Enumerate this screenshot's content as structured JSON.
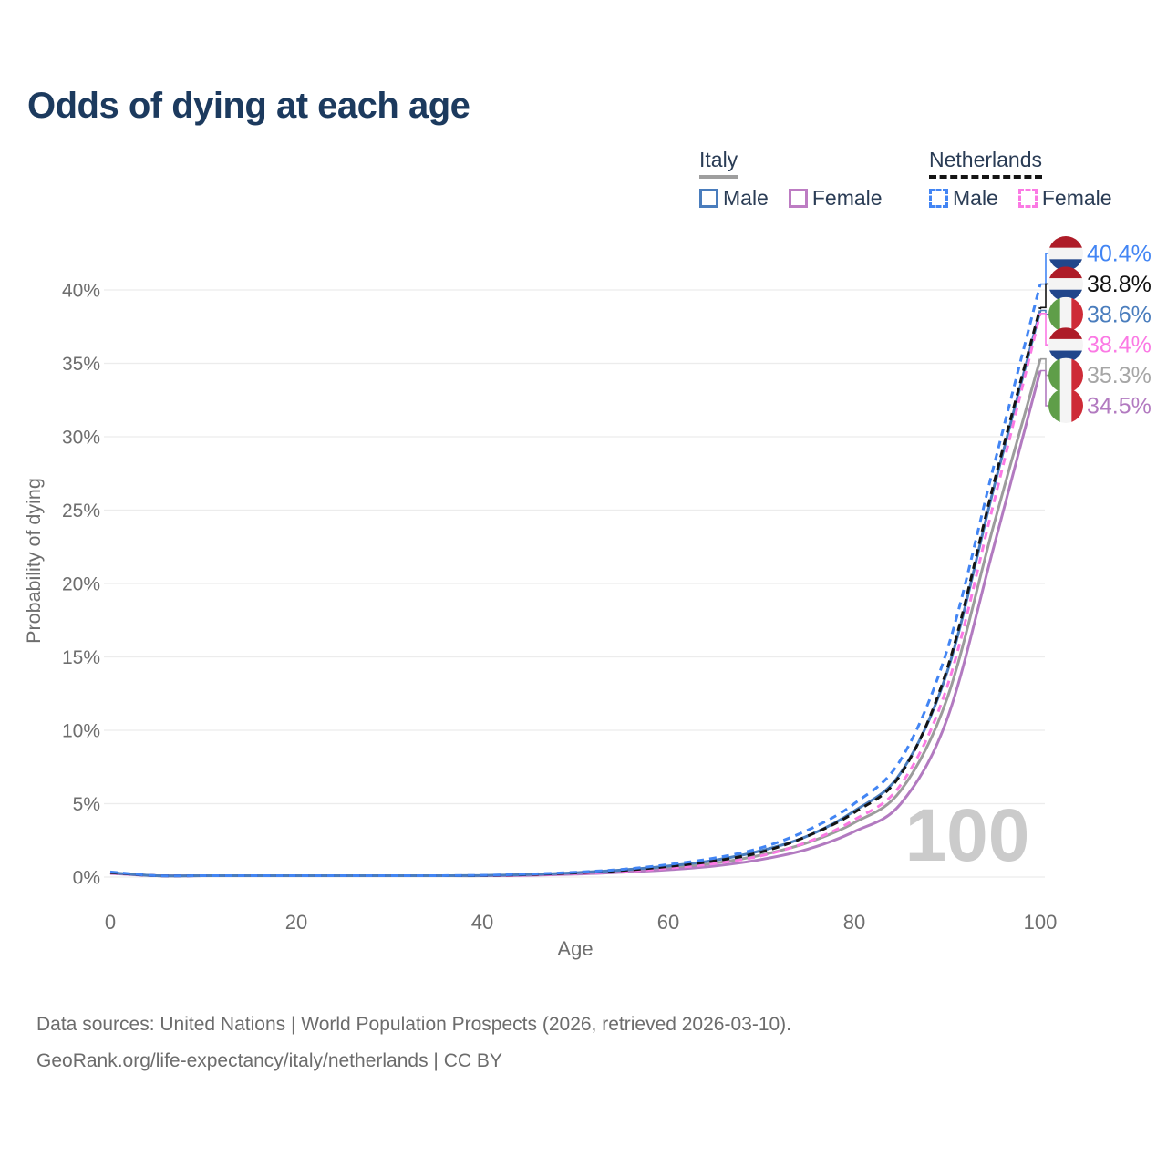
{
  "title": "Odds of dying at each age",
  "watermark": "100",
  "legend": {
    "groups": [
      {
        "label": "Italy",
        "underline": "solid",
        "underline_color": "#9e9e9e",
        "items": [
          {
            "label": "Male",
            "box_color": "#4a7dbd",
            "box_style": "solid"
          },
          {
            "label": "Female",
            "box_color": "#bd7cc3",
            "box_style": "solid"
          }
        ]
      },
      {
        "label": "Netherlands",
        "underline": "dashed",
        "underline_color": "#141414",
        "items": [
          {
            "label": "Male",
            "box_color": "#4285f4",
            "box_style": "dashed"
          },
          {
            "label": "Female",
            "box_color": "#fb79e4",
            "box_style": "dashed"
          }
        ]
      }
    ]
  },
  "chart_data": {
    "type": "line",
    "xlabel": "Age",
    "ylabel": "Probability of dying",
    "xlim": [
      0,
      100
    ],
    "ylim": [
      0,
      42
    ],
    "xticks": [
      0,
      20,
      40,
      60,
      80,
      100
    ],
    "yticks": [
      0,
      5,
      10,
      15,
      20,
      25,
      30,
      35,
      40
    ],
    "ytick_suffix": "%",
    "grid": "horizontal",
    "x": [
      0,
      5,
      10,
      15,
      20,
      25,
      30,
      35,
      40,
      45,
      50,
      55,
      60,
      65,
      70,
      75,
      80,
      85,
      90,
      95,
      100
    ],
    "series": [
      {
        "id": "netherlands-male",
        "country": "Netherlands",
        "sex": "Male",
        "flag": "nl",
        "style": "dashed",
        "color": "#4285f4",
        "label_color": "#4285f4",
        "end_label": "40.4%",
        "values": [
          0.35,
          0.02,
          0.01,
          0.02,
          0.04,
          0.05,
          0.06,
          0.08,
          0.12,
          0.2,
          0.33,
          0.52,
          0.85,
          1.3,
          2.0,
          3.2,
          5.0,
          8.0,
          15.5,
          28.0,
          40.4
        ]
      },
      {
        "id": "netherlands-both",
        "country": "Netherlands",
        "sex": "Both",
        "flag": "nl",
        "style": "dashed",
        "color": "#141414",
        "label_color": "#111111",
        "end_label": "38.8%",
        "values": [
          0.3,
          0.02,
          0.01,
          0.02,
          0.03,
          0.04,
          0.05,
          0.07,
          0.1,
          0.17,
          0.28,
          0.45,
          0.72,
          1.1,
          1.7,
          2.8,
          4.4,
          7.0,
          14.2,
          26.8,
          38.8
        ]
      },
      {
        "id": "italy-male",
        "country": "Italy",
        "sex": "Male",
        "flag": "it",
        "style": "solid",
        "color": "#4a7dbd",
        "label_color": "#4a7dbd",
        "end_label": "38.6%",
        "values": [
          0.3,
          0.02,
          0.01,
          0.02,
          0.04,
          0.05,
          0.06,
          0.08,
          0.11,
          0.18,
          0.3,
          0.48,
          0.75,
          1.15,
          1.8,
          2.8,
          4.5,
          7.1,
          14.0,
          26.5,
          38.6
        ]
      },
      {
        "id": "netherlands-female",
        "country": "Netherlands",
        "sex": "Female",
        "flag": "nl",
        "style": "dashed",
        "color": "#fb79e4",
        "label_color": "#fb79e4",
        "end_label": "38.4%",
        "values": [
          0.28,
          0.01,
          0.01,
          0.01,
          0.03,
          0.03,
          0.04,
          0.06,
          0.09,
          0.14,
          0.24,
          0.38,
          0.6,
          0.92,
          1.45,
          2.4,
          3.9,
          6.3,
          13.0,
          25.5,
          38.4
        ]
      },
      {
        "id": "italy-both",
        "country": "Italy",
        "sex": "Both",
        "flag": "it",
        "style": "solid",
        "color": "#9c9c9c",
        "label_color": "#a6a6a6",
        "end_label": "35.3%",
        "values": [
          0.28,
          0.01,
          0.01,
          0.02,
          0.03,
          0.04,
          0.05,
          0.07,
          0.09,
          0.15,
          0.25,
          0.4,
          0.62,
          0.95,
          1.5,
          2.35,
          3.7,
          5.9,
          12.2,
          24.0,
          35.3
        ]
      },
      {
        "id": "italy-female",
        "country": "Italy",
        "sex": "Female",
        "flag": "it",
        "style": "solid",
        "color": "#b27ac0",
        "label_color": "#b27ac0",
        "end_label": "34.5%",
        "values": [
          0.25,
          0.01,
          0.01,
          0.01,
          0.02,
          0.03,
          0.04,
          0.05,
          0.08,
          0.12,
          0.2,
          0.32,
          0.5,
          0.75,
          1.2,
          1.9,
          3.1,
          5.0,
          10.8,
          22.5,
          34.5
        ]
      }
    ],
    "flag_colors": {
      "nl": [
        "#ae1c28",
        "#f4f4f4",
        "#21468b"
      ],
      "it": [
        "#5f9e49",
        "#f4f4f4",
        "#ce2b37"
      ]
    }
  },
  "footer": {
    "lines": [
      "Data sources: United Nations | World Population Prospects (2026, retrieved 2026-03-10).",
      "GeoRank.org/life-expectancy/italy/netherlands | CC BY"
    ]
  }
}
